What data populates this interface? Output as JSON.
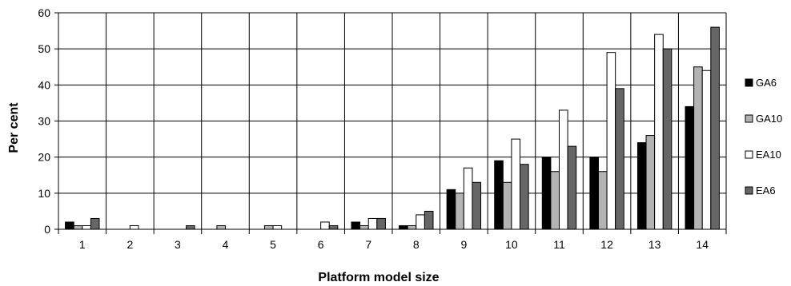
{
  "chart_data": {
    "type": "bar",
    "title": "",
    "xlabel": "Platform model size",
    "ylabel": "Per cent",
    "categories": [
      "1",
      "2",
      "3",
      "4",
      "5",
      "6",
      "7",
      "8",
      "9",
      "10",
      "11",
      "12",
      "13",
      "14"
    ],
    "ylim": [
      0,
      60
    ],
    "yticks": [
      0,
      10,
      20,
      30,
      40,
      50,
      60
    ],
    "grid": true,
    "legend_position": "right",
    "series": [
      {
        "name": "GA6",
        "color": "#000000",
        "values": [
          2,
          0,
          0,
          0,
          0,
          0,
          2,
          1,
          11,
          19,
          20,
          20,
          24,
          34
        ]
      },
      {
        "name": "GA10",
        "color": "#b3b3b3",
        "values": [
          1,
          0,
          0,
          1,
          1,
          0,
          1,
          1,
          10,
          13,
          16,
          16,
          26,
          45
        ]
      },
      {
        "name": "EA10",
        "color": "#ffffff",
        "values": [
          1,
          1,
          0,
          0,
          1,
          2,
          3,
          4,
          17,
          25,
          33,
          49,
          54,
          44
        ]
      },
      {
        "name": "EA6",
        "color": "#666666",
        "values": [
          3,
          0,
          1,
          0,
          0,
          1,
          3,
          5,
          13,
          18,
          23,
          39,
          50,
          56
        ]
      }
    ]
  }
}
